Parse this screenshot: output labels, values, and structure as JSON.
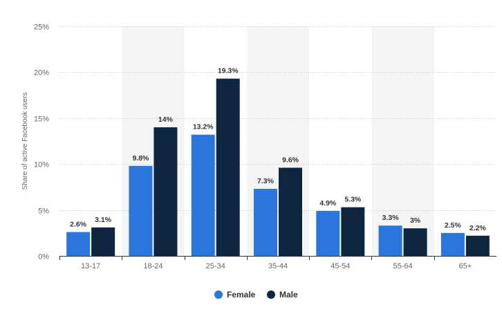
{
  "chart_data": {
    "type": "bar",
    "ylabel": "Share of active Facebook users",
    "ylim": [
      0,
      25
    ],
    "yticks": [
      0,
      5,
      10,
      15,
      20,
      25
    ],
    "ytick_labels": [
      "0%",
      "5%",
      "10%",
      "15%",
      "20%",
      "25%"
    ],
    "categories": [
      "13-17",
      "18-24",
      "25-34",
      "35-44",
      "45-54",
      "55-64",
      "65+"
    ],
    "series": [
      {
        "name": "Female",
        "color": "#2a76dd",
        "values": [
          2.6,
          9.8,
          13.2,
          7.3,
          4.9,
          3.3,
          2.5
        ],
        "labels": [
          "2.6%",
          "9.8%",
          "13.2%",
          "7.3%",
          "4.9%",
          "3.3%",
          "2.5%"
        ]
      },
      {
        "name": "Male",
        "color": "#0f2641",
        "values": [
          3.1,
          14,
          19.3,
          9.6,
          5.3,
          3,
          2.2
        ],
        "labels": [
          "3.1%",
          "14%",
          "19.3%",
          "9.6%",
          "5.3%",
          "3%",
          "2.2%"
        ]
      }
    ],
    "grid": true,
    "legend_position": "bottom-center",
    "band_color": "#f4f4f4"
  }
}
